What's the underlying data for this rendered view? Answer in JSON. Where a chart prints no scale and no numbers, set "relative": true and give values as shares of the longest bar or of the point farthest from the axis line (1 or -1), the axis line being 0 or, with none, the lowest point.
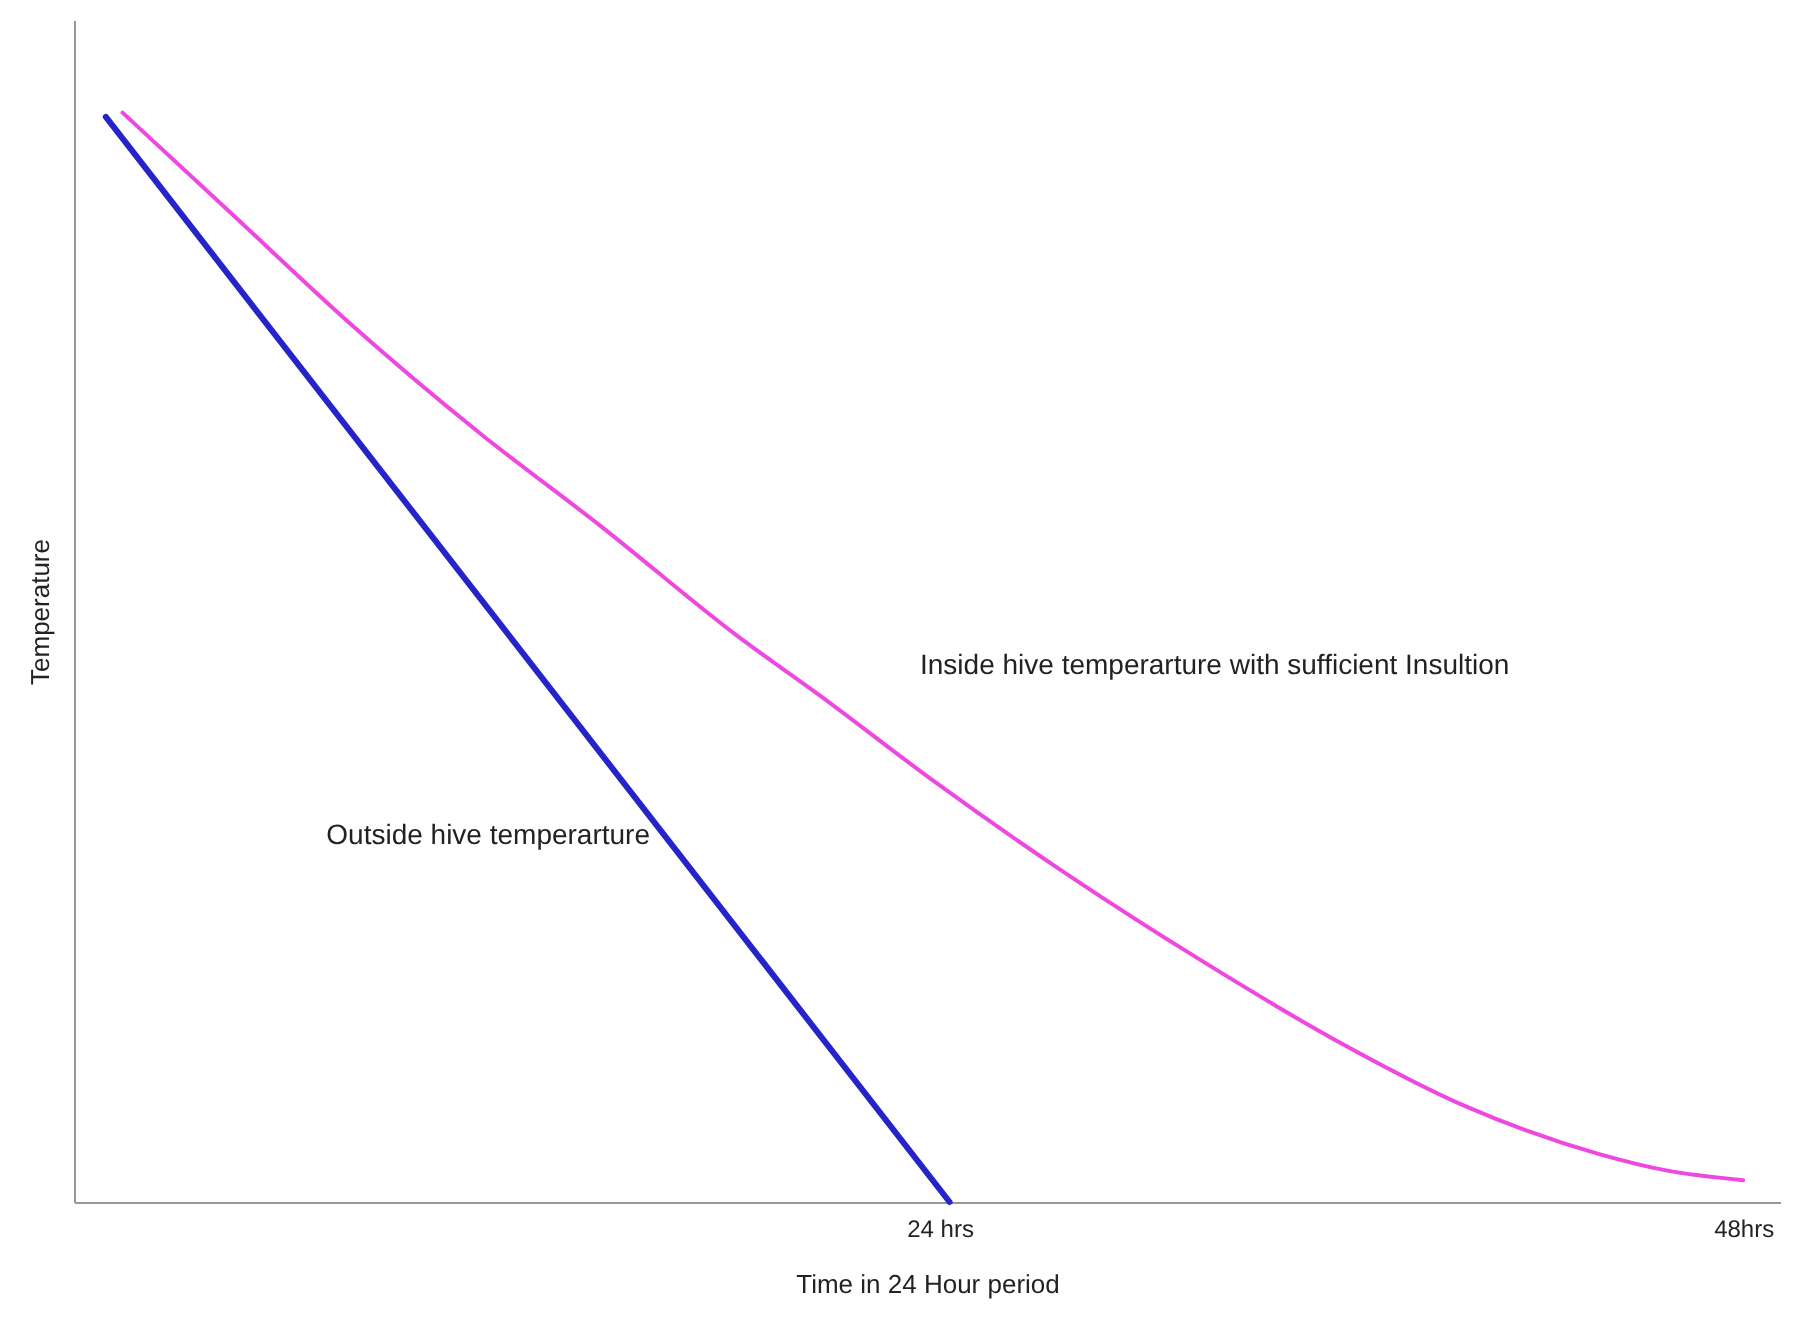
{
  "chart_data": {
    "type": "line",
    "relative": true,
    "xlabel": "Time in 24 Hour period",
    "ylabel": "Temperature",
    "xlim": [
      -1.85,
      49.1
    ],
    "xticks": [
      {
        "value": 24,
        "label": "24 hrs"
      },
      {
        "value": 48,
        "label": "48hrs"
      }
    ],
    "grid": false,
    "marker": "none",
    "line_style": "solid",
    "series": [
      {
        "name": "Outside hive temperarture",
        "color": "#2424c8",
        "x": [
          -0.9,
          24.3
        ],
        "values": [
          0.996,
          0
        ]
      },
      {
        "name": "Inside hive temperarture with sufficient Insultion",
        "color": "#ee48e0",
        "x": [
          -0.4,
          2.9,
          6.3,
          10.3,
          13.9,
          17.9,
          20.6,
          23.8,
          27.8,
          31.8,
          35.8,
          39.7,
          43.7,
          45.7,
          48.0
        ],
        "values": [
          1.0,
          0.906,
          0.809,
          0.705,
          0.62,
          0.521,
          0.461,
          0.387,
          0.301,
          0.222,
          0.149,
          0.088,
          0.044,
          0.029,
          0.02
        ]
      }
    ]
  }
}
